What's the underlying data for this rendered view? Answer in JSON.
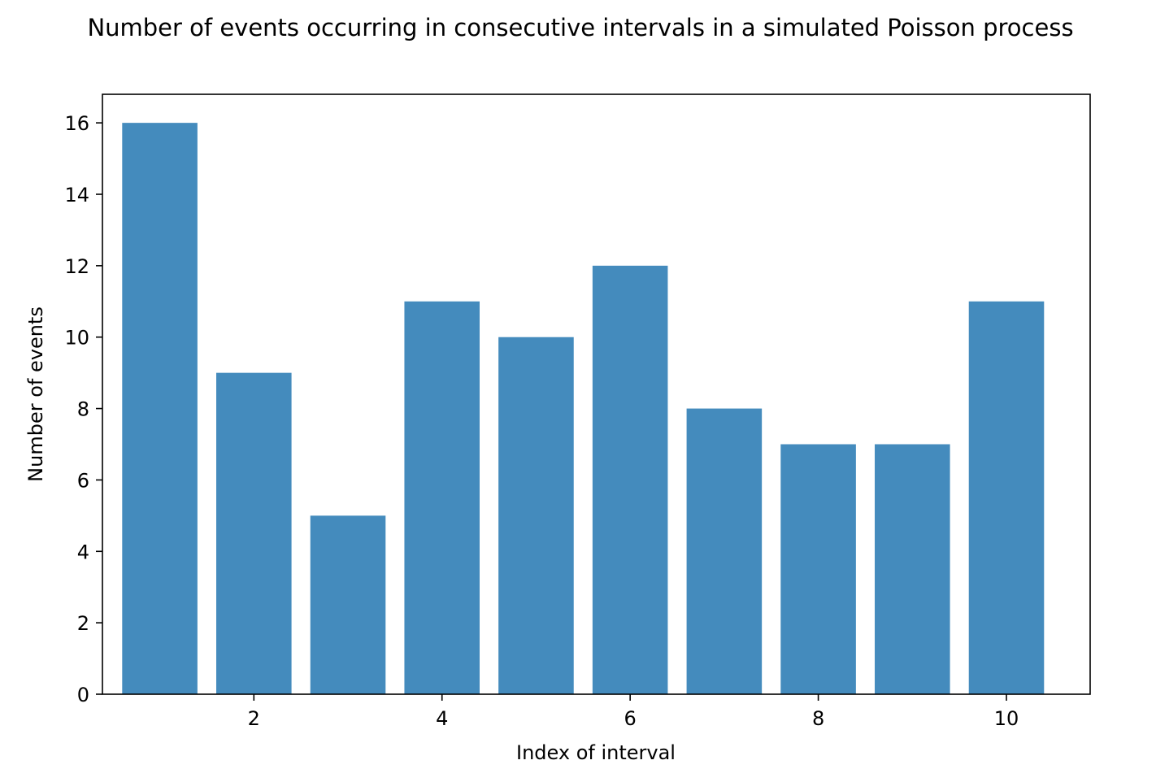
{
  "chart_data": {
    "type": "bar",
    "title": "Number of events occurring in consecutive intervals in a simulated Poisson process",
    "xlabel": "Index of interval",
    "ylabel": "Number of events",
    "categories": [
      1,
      2,
      3,
      4,
      5,
      6,
      7,
      8,
      9,
      10
    ],
    "values": [
      16,
      9,
      5,
      11,
      10,
      12,
      8,
      7,
      7,
      11
    ],
    "xlim": [
      0.39,
      10.89
    ],
    "ylim": [
      0,
      16.8
    ],
    "xticks": [
      2,
      4,
      6,
      8,
      10
    ],
    "yticks": [
      0,
      2,
      4,
      6,
      8,
      10,
      12,
      14,
      16
    ],
    "bar_width": 0.8,
    "bar_color": "#448bbd",
    "grid": false,
    "legend": "none"
  }
}
